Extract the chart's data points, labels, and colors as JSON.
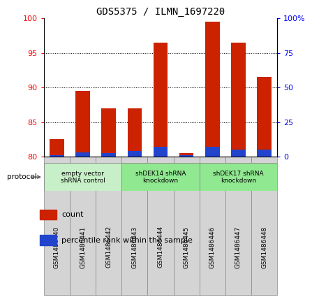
{
  "title": "GDS5375 / ILMN_1697220",
  "samples": [
    "GSM1486440",
    "GSM1486441",
    "GSM1486442",
    "GSM1486443",
    "GSM1486444",
    "GSM1486445",
    "GSM1486446",
    "GSM1486447",
    "GSM1486448"
  ],
  "red_values": [
    82.5,
    89.5,
    87.0,
    87.0,
    96.5,
    80.5,
    99.5,
    96.5,
    91.5
  ],
  "blue_values_pct": [
    1.0,
    3.0,
    2.5,
    4.0,
    7.0,
    1.0,
    7.0,
    5.0,
    5.0
  ],
  "ylim_left": [
    80,
    100
  ],
  "ylim_right": [
    0,
    100
  ],
  "yticks_left": [
    80,
    85,
    90,
    95,
    100
  ],
  "yticks_right": [
    0,
    25,
    50,
    75,
    100
  ],
  "ytick_labels_right": [
    "0",
    "25",
    "50",
    "75",
    "100%"
  ],
  "groups": [
    {
      "label": "empty vector\nshRNA control",
      "start": 0,
      "end": 3,
      "color": "#c8f0c8"
    },
    {
      "label": "shDEK14 shRNA\nknockdown",
      "start": 3,
      "end": 6,
      "color": "#90e890"
    },
    {
      "label": "shDEK17 shRNA\nknockdown",
      "start": 6,
      "end": 9,
      "color": "#90e890"
    }
  ],
  "protocol_label": "protocol",
  "legend_items": [
    {
      "label": "count",
      "color": "#cc2200"
    },
    {
      "label": "percentile rank within the sample",
      "color": "#2244cc"
    }
  ],
  "bar_color_red": "#cc2200",
  "bar_color_blue": "#2244cc",
  "bar_width": 0.55,
  "title_fontsize": 10
}
